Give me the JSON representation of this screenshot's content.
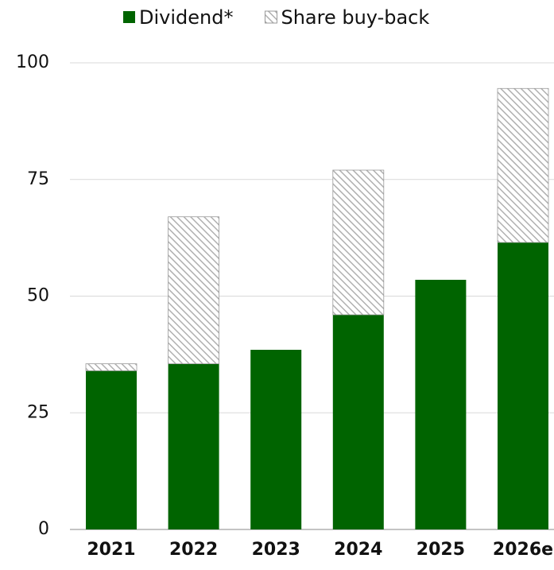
{
  "chart_data": {
    "type": "bar",
    "stacked": true,
    "categories": [
      "2021",
      "2022",
      "2023",
      "2024",
      "2025",
      "2026e"
    ],
    "series": [
      {
        "name": "Dividend*",
        "color": "#006400",
        "values": [
          34,
          35.5,
          38.5,
          46,
          53.5,
          61.5
        ]
      },
      {
        "name": "Share buy-back",
        "color": "#b0b0b0",
        "pattern": "hatch",
        "values": [
          1.5,
          31.5,
          0,
          31,
          0,
          33
        ]
      }
    ],
    "ylim": [
      0,
      100
    ],
    "yticks": [
      0,
      25,
      50,
      75,
      100
    ],
    "grid": true,
    "legend": "top"
  }
}
